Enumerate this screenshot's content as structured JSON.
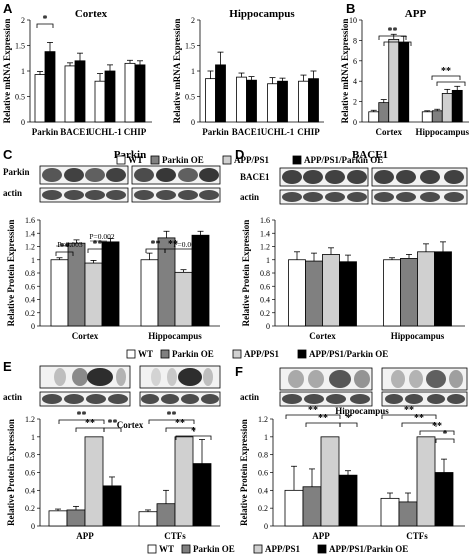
{
  "colors": {
    "wt": "#ffffff",
    "parkin_oe": "#808080",
    "app_ps1": "#d0d0d0",
    "app_ps1_parkin_oe": "#000000",
    "blot_bg": "#f2f2f2",
    "band": "#222222"
  },
  "legend_top": [
    "WT",
    "Parkin OE",
    "APP/PS1",
    "APP/PS1/Parkin OE"
  ],
  "legend_mid": [
    "WT",
    "Parkin OE",
    "APP/PS1",
    "APP/PS1/Parkin OE"
  ],
  "legend_bot": [
    "WT",
    "Parkin OE",
    "APP/PS1",
    "APP/PS1/Parkin OE"
  ],
  "blot_labels": {
    "c_top": "Parkin",
    "c_bot": "actin",
    "d_top": "BACE1",
    "d_bot": "actin",
    "e_bot": "actin",
    "f_bot": "actin"
  },
  "chart_data": [
    {
      "id": "A1",
      "panel_label": "A",
      "type": "bar",
      "title": "Cortex",
      "ylabel": "Relative mRNA Expression",
      "ylim": [
        0,
        2
      ],
      "yticks": [
        0,
        0.5,
        1,
        1.5,
        2
      ],
      "categories": [
        "Parkin",
        "BACE1",
        "UCHL-1",
        "CHIP"
      ],
      "series": [
        {
          "name": "WT",
          "values": [
            0.93,
            1.1,
            0.8,
            1.15
          ],
          "errors": [
            0.06,
            0.06,
            0.15,
            0.06
          ]
        },
        {
          "name": "APP/PS1/Parkin OE",
          "values": [
            1.38,
            1.2,
            1.0,
            1.12
          ],
          "errors": [
            0.18,
            0.15,
            0.12,
            0.08
          ]
        }
      ],
      "annotations": [
        {
          "text": "*",
          "between": [
            0,
            0
          ]
        }
      ]
    },
    {
      "id": "A2",
      "type": "bar",
      "title": "Hippocampus",
      "ylabel": "Relative mRNA Expression",
      "ylim": [
        0,
        2
      ],
      "yticks": [
        0,
        0.5,
        1,
        1.5,
        2
      ],
      "categories": [
        "Parkin",
        "BACE1",
        "UCHL-1",
        "CHIP"
      ],
      "series": [
        {
          "name": "WT",
          "values": [
            0.85,
            0.88,
            0.75,
            0.8
          ],
          "errors": [
            0.15,
            0.08,
            0.12,
            0.12
          ]
        },
        {
          "name": "APP/PS1/Parkin OE",
          "values": [
            1.12,
            0.82,
            0.8,
            0.85
          ],
          "errors": [
            0.25,
            0.07,
            0.06,
            0.15
          ]
        }
      ]
    },
    {
      "id": "B",
      "panel_label": "B",
      "type": "bar",
      "title": "APP",
      "ylabel": "Relative mRNA Expression",
      "ylim": [
        0,
        10
      ],
      "yticks": [
        0,
        2,
        4,
        6,
        8,
        10
      ],
      "categories": [
        "Cortex",
        "Hippocampus"
      ],
      "series": [
        {
          "name": "WT",
          "values": [
            1.0,
            1.0
          ],
          "errors": [
            0.15,
            0.1
          ]
        },
        {
          "name": "Parkin OE",
          "values": [
            1.9,
            1.1
          ],
          "errors": [
            0.3,
            0.15
          ]
        },
        {
          "name": "APP/PS1",
          "values": [
            8.1,
            2.8
          ],
          "errors": [
            0.5,
            0.4
          ]
        },
        {
          "name": "APP/PS1/Parkin OE",
          "values": [
            7.8,
            3.1
          ],
          "errors": [
            0.6,
            0.4
          ]
        }
      ],
      "annotations": [
        {
          "text": "**",
          "group": 0
        },
        {
          "text": "**",
          "group": 1
        }
      ]
    },
    {
      "id": "C",
      "panel_label": "C",
      "type": "bar",
      "title": "Parkin",
      "ylabel": "Relative Protein Expression",
      "ylim": [
        0,
        1.6
      ],
      "yticks": [
        0,
        0.2,
        0.4,
        0.6,
        0.8,
        1,
        1.2,
        1.4,
        1.6
      ],
      "categories": [
        "Cortex",
        "Hippocampus"
      ],
      "series": [
        {
          "name": "WT",
          "values": [
            1.0,
            1.0
          ],
          "errors": [
            0.03,
            0.1
          ]
        },
        {
          "name": "Parkin OE",
          "values": [
            1.25,
            1.33
          ],
          "errors": [
            0.05,
            0.1
          ]
        },
        {
          "name": "APP/PS1",
          "values": [
            0.95,
            0.81
          ],
          "errors": [
            0.04,
            0.04
          ]
        },
        {
          "name": "APP/PS1/Parkin OE",
          "values": [
            1.27,
            1.37
          ],
          "errors": [
            0.05,
            0.06
          ]
        }
      ],
      "annotations": [
        "P=0.003",
        "P=0.002",
        "**",
        "**",
        "**",
        "P=0.001"
      ]
    },
    {
      "id": "D",
      "panel_label": "D",
      "type": "bar",
      "title": "BACE1",
      "ylabel": "Relative Protein Expression",
      "ylim": [
        0,
        1.6
      ],
      "yticks": [
        0,
        0.2,
        0.4,
        0.6,
        0.8,
        1,
        1.2,
        1.4,
        1.6
      ],
      "categories": [
        "Cortex",
        "Hippocampus"
      ],
      "series": [
        {
          "name": "WT",
          "values": [
            1.0,
            1.0
          ],
          "errors": [
            0.12,
            0.03
          ]
        },
        {
          "name": "Parkin OE",
          "values": [
            0.98,
            1.02
          ],
          "errors": [
            0.12,
            0.06
          ]
        },
        {
          "name": "APP/PS1",
          "values": [
            1.08,
            1.12
          ],
          "errors": [
            0.1,
            0.12
          ]
        },
        {
          "name": "APP/PS1/Parkin OE",
          "values": [
            0.97,
            1.12
          ],
          "errors": [
            0.1,
            0.15
          ]
        }
      ]
    },
    {
      "id": "E",
      "panel_label": "E",
      "type": "bar",
      "inner_label": "Cortex",
      "ylabel": "Relative Protein Expression",
      "ylim": [
        0,
        1.2
      ],
      "yticks": [
        0,
        0.2,
        0.4,
        0.6,
        0.8,
        1,
        1.2
      ],
      "categories": [
        "APP",
        "CTFs"
      ],
      "series": [
        {
          "name": "WT",
          "values": [
            0.17,
            0.16
          ],
          "errors": [
            0.02,
            0.02
          ]
        },
        {
          "name": "Parkin OE",
          "values": [
            0.18,
            0.25
          ],
          "errors": [
            0.04,
            0.15
          ]
        },
        {
          "name": "APP/PS1",
          "values": [
            1.0,
            1.0
          ],
          "errors": [
            0.0,
            0.0
          ]
        },
        {
          "name": "APP/PS1/Parkin OE",
          "values": [
            0.45,
            0.7
          ],
          "errors": [
            0.1,
            0.27
          ]
        }
      ],
      "annotations": [
        "**",
        "**",
        "**",
        "**",
        "**",
        "*"
      ]
    },
    {
      "id": "F",
      "panel_label": "F",
      "type": "bar",
      "inner_label": "Hippocampus",
      "ylabel": "Relative Protein Expression",
      "ylim": [
        0,
        1.2
      ],
      "yticks": [
        0,
        0.2,
        0.4,
        0.6,
        0.8,
        1,
        1.2
      ],
      "categories": [
        "APP",
        "CTFs"
      ],
      "series": [
        {
          "name": "WT",
          "values": [
            0.4,
            0.31
          ],
          "errors": [
            0.27,
            0.06
          ]
        },
        {
          "name": "Parkin OE",
          "values": [
            0.44,
            0.27
          ],
          "errors": [
            0.2,
            0.1
          ]
        },
        {
          "name": "APP/PS1",
          "values": [
            1.0,
            1.0
          ],
          "errors": [
            0.0,
            0.0
          ]
        },
        {
          "name": "APP/PS1/Parkin OE",
          "values": [
            0.57,
            0.6
          ],
          "errors": [
            0.05,
            0.15
          ]
        }
      ],
      "annotations": [
        "**",
        "**",
        "*",
        "**",
        "**",
        "**",
        "*"
      ]
    }
  ]
}
